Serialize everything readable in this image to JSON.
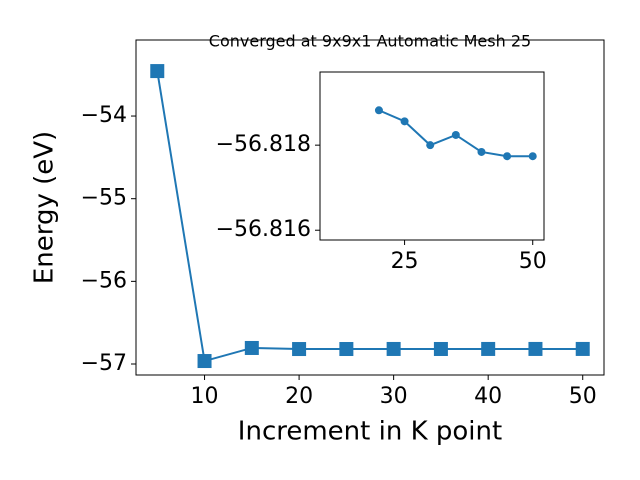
{
  "chart_data": [
    {
      "type": "line",
      "title": "Converged at 9x9x1 Automatic Mesh 25",
      "x_label": "Increment in K point",
      "y_label": "Energy (eV)",
      "x": [
        5,
        10,
        15,
        20,
        25,
        30,
        35,
        40,
        45,
        50
      ],
      "values": [
        -53.456,
        -56.964,
        -56.806,
        -56.81882,
        -56.81856,
        -56.818,
        -56.81824,
        -56.81784,
        -56.81774,
        -56.81774
      ],
      "color": "#1f77b4",
      "marker": "square",
      "xlim": [
        2.75,
        52.25
      ],
      "ylim": [
        -57.133,
        -53.08
      ],
      "xticks": [
        10,
        20,
        30,
        40,
        50
      ],
      "yticks": [
        {
          "value": -57,
          "label": "−57"
        },
        {
          "value": -56,
          "label": "−56"
        },
        {
          "value": -55,
          "label": "−55"
        },
        {
          "value": -54,
          "label": "−54"
        }
      ]
    },
    {
      "type": "line",
      "x": [
        20,
        25,
        30,
        35,
        40,
        45,
        50
      ],
      "values": [
        -56.81882,
        -56.81856,
        -56.818,
        -56.81824,
        -56.81784,
        -56.81774,
        -56.81774
      ],
      "color": "#1f77b4",
      "marker": "circle",
      "xlim": [
        8.5,
        52.2
      ],
      "ylim": [
        -56.81577,
        -56.81972
      ],
      "xticks": [
        25,
        50
      ],
      "yticks": [
        {
          "value": -56.818,
          "label": "−56.818"
        },
        {
          "value": -56.816,
          "label": "−56.816"
        }
      ]
    }
  ]
}
